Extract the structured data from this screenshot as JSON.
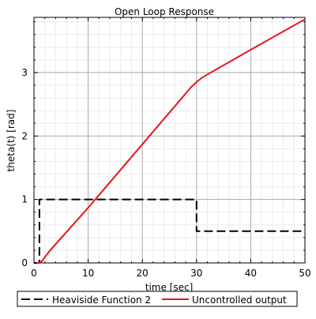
{
  "chart_data": {
    "type": "line",
    "title": "Open Loop Response",
    "xlabel": "time [sec]",
    "ylabel": "theta(t) [rad]",
    "xlim": [
      0,
      50
    ],
    "ylim": [
      0,
      3.87
    ],
    "xticks": [
      0,
      10,
      20,
      30,
      40,
      50
    ],
    "yticks": [
      0,
      1,
      2,
      3
    ],
    "grid": true,
    "legend_position": "bottom",
    "series": [
      {
        "name": "Heaviside Function 2",
        "color": "#000000",
        "line_style": "dashed",
        "points": [
          [
            0,
            0
          ],
          [
            1,
            0
          ],
          [
            1,
            1
          ],
          [
            30,
            1
          ],
          [
            30,
            0.5
          ],
          [
            50,
            0.5
          ]
        ]
      },
      {
        "name": "Uncontrolled output",
        "color": "#e8141e",
        "line_style": "solid",
        "points": [
          [
            0.5,
            0
          ],
          [
            1,
            0
          ],
          [
            1.5,
            0.03
          ],
          [
            2,
            0.09
          ],
          [
            3,
            0.2
          ],
          [
            10,
            0.87
          ],
          [
            20,
            1.87
          ],
          [
            29,
            2.77
          ],
          [
            30,
            2.85
          ],
          [
            31,
            2.92
          ],
          [
            32,
            2.97
          ],
          [
            40,
            3.36
          ],
          [
            50,
            3.84
          ]
        ]
      }
    ]
  }
}
